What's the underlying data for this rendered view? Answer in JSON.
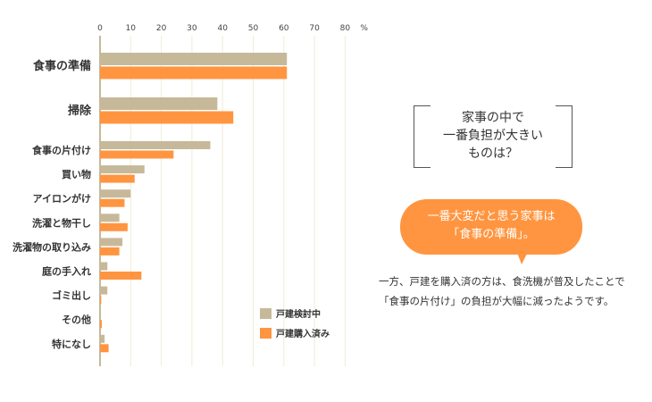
{
  "chart_data": {
    "type": "bar",
    "orientation": "horizontal",
    "unit_label": "%",
    "xlim": [
      0,
      80
    ],
    "ticks": [
      "0",
      "10",
      "20",
      "30",
      "40",
      "50",
      "60",
      "70",
      "80"
    ],
    "grid": true,
    "legend_position": "bottom-right",
    "categories": [
      "食事の準備",
      "掃除",
      "食事の片付け",
      "買い物",
      "アイロンがけ",
      "洗濯と物干し",
      "洗濯物の取り込み",
      "庭の手入れ",
      "ゴミ出し",
      "その他",
      "特になし"
    ],
    "series": [
      {
        "name": "戸建検討中",
        "color": "#c6b99a",
        "values": [
          61,
          38.3,
          36,
          14.5,
          10,
          6.3,
          7.3,
          2.4,
          2.4,
          0.3,
          1.5
        ]
      },
      {
        "name": "戸建購入済み",
        "color": "#ff9540",
        "values": [
          61,
          43.5,
          24,
          11.3,
          8,
          9,
          6.3,
          13.5,
          0.4,
          0.6,
          2.8
        ]
      }
    ]
  },
  "frame_text": [
    "家事の中で",
    "一番負担が大きい",
    "ものは？"
  ],
  "bubble_text": [
    "一番大変だと思う家事は",
    "「食事の準備」。"
  ],
  "note_text": [
    "一方、戸建を購入済の方は、食洗機が普及したことで",
    "「食事の片付け」の負担が大幅に減ったようです。"
  ]
}
